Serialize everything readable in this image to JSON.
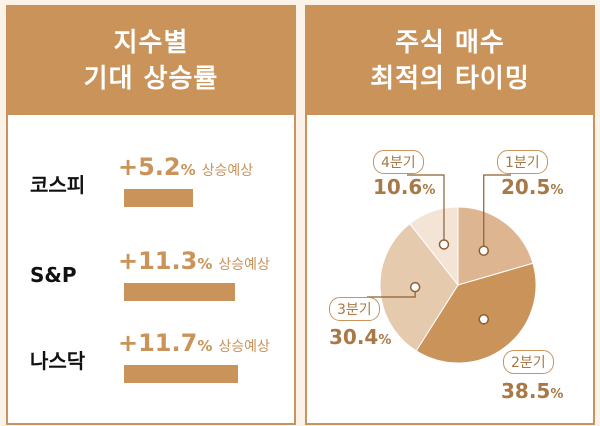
{
  "left_panel": {
    "title_line1": "지수별",
    "title_line2": "기대 상승률",
    "rows": [
      {
        "name": "코스피",
        "value": "+5.2",
        "unit": "%",
        "note": "상승예상",
        "bar_fraction": 0.46
      },
      {
        "name": "S&P",
        "value": "+11.3",
        "unit": "%",
        "note": "상승예상",
        "bar_fraction": 0.74
      },
      {
        "name": "나스닥",
        "value": "+11.7",
        "unit": "%",
        "note": "상승예상",
        "bar_fraction": 0.76
      }
    ]
  },
  "right_panel": {
    "title_line1": "주식 매수",
    "title_line2": "최적의 타이밍"
  },
  "chart_data": {
    "type": "pie",
    "title": "",
    "slices": [
      {
        "label": "1분기",
        "value": 20.5,
        "display": "20.5",
        "color": "#ddb590"
      },
      {
        "label": "2분기",
        "value": 38.5,
        "display": "38.5",
        "color": "#c9935a"
      },
      {
        "label": "3분기",
        "value": 30.4,
        "display": "30.4",
        "color": "#e6caae"
      },
      {
        "label": "4분기",
        "value": 10.6,
        "display": "10.6",
        "color": "#f3e4d6"
      }
    ],
    "unit": "%"
  }
}
